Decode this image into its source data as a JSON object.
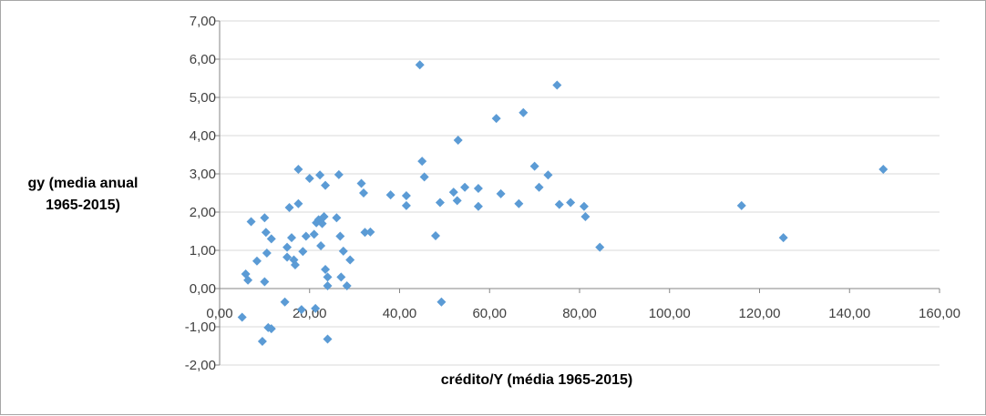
{
  "chart_data": {
    "type": "scatter",
    "xlabel": "crédito/Y (média 1965-2015)",
    "ylabel_lines": [
      "gy (media anual",
      "1965-2015)"
    ],
    "xlim": [
      0,
      160
    ],
    "ylim": [
      -2,
      7
    ],
    "x_ticks": [
      0,
      20,
      40,
      60,
      80,
      100,
      120,
      140,
      160
    ],
    "y_ticks": [
      -2,
      -1,
      0,
      1,
      2,
      3,
      4,
      5,
      6,
      7
    ],
    "x_tick_labels": [
      "0,00",
      "20,00",
      "40,00",
      "60,00",
      "80,00",
      "100,00",
      "120,00",
      "140,00",
      "160,00"
    ],
    "y_tick_labels": [
      "-2,00",
      "-1,00",
      "0,00",
      "1,00",
      "2,00",
      "3,00",
      "4,00",
      "5,00",
      "6,00",
      "7,00"
    ],
    "grid": "horizontal major",
    "legend": "none",
    "marker_color": "#5b9bd5",
    "marker": "diamond",
    "points": [
      [
        5.0,
        -0.75
      ],
      [
        5.8,
        0.38
      ],
      [
        6.3,
        0.22
      ],
      [
        7.0,
        1.75
      ],
      [
        8.3,
        0.72
      ],
      [
        9.5,
        -1.38
      ],
      [
        10.0,
        1.85
      ],
      [
        10.0,
        0.18
      ],
      [
        10.3,
        1.47
      ],
      [
        10.5,
        0.93
      ],
      [
        10.8,
        -1.02
      ],
      [
        11.5,
        -1.05
      ],
      [
        11.5,
        1.3
      ],
      [
        14.5,
        -0.35
      ],
      [
        15.0,
        0.82
      ],
      [
        15.0,
        1.08
      ],
      [
        15.5,
        2.12
      ],
      [
        16.0,
        1.33
      ],
      [
        16.5,
        0.75
      ],
      [
        16.8,
        0.62
      ],
      [
        17.5,
        2.22
      ],
      [
        17.5,
        3.12
      ],
      [
        18.2,
        -0.55
      ],
      [
        18.5,
        0.97
      ],
      [
        19.2,
        1.37
      ],
      [
        20.0,
        2.88
      ],
      [
        21.0,
        1.42
      ],
      [
        21.3,
        -0.52
      ],
      [
        21.5,
        1.72
      ],
      [
        22.0,
        1.8
      ],
      [
        22.3,
        2.97
      ],
      [
        22.5,
        1.12
      ],
      [
        22.8,
        1.7
      ],
      [
        23.2,
        1.88
      ],
      [
        23.5,
        0.5
      ],
      [
        23.5,
        2.7
      ],
      [
        24.0,
        0.3
      ],
      [
        24.0,
        0.07
      ],
      [
        24.0,
        -1.32
      ],
      [
        26.0,
        1.85
      ],
      [
        26.5,
        2.98
      ],
      [
        26.8,
        1.37
      ],
      [
        27.0,
        0.3
      ],
      [
        27.5,
        0.98
      ],
      [
        28.3,
        0.07
      ],
      [
        29.0,
        0.75
      ],
      [
        31.5,
        2.75
      ],
      [
        32.0,
        2.5
      ],
      [
        32.3,
        1.47
      ],
      [
        33.5,
        1.48
      ],
      [
        38.0,
        2.45
      ],
      [
        41.5,
        2.43
      ],
      [
        41.5,
        2.17
      ],
      [
        44.5,
        5.85
      ],
      [
        45.0,
        3.33
      ],
      [
        45.5,
        2.92
      ],
      [
        48.0,
        1.38
      ],
      [
        49.0,
        2.25
      ],
      [
        49.3,
        -0.35
      ],
      [
        52.0,
        2.52
      ],
      [
        52.8,
        2.3
      ],
      [
        53.0,
        3.88
      ],
      [
        54.5,
        2.65
      ],
      [
        57.5,
        2.62
      ],
      [
        57.5,
        2.15
      ],
      [
        61.5,
        4.45
      ],
      [
        62.5,
        2.48
      ],
      [
        66.5,
        2.22
      ],
      [
        67.5,
        4.6
      ],
      [
        70.0,
        3.2
      ],
      [
        71.0,
        2.65
      ],
      [
        73.0,
        2.97
      ],
      [
        75.0,
        5.32
      ],
      [
        75.5,
        2.2
      ],
      [
        78.0,
        2.25
      ],
      [
        81.0,
        2.15
      ],
      [
        81.3,
        1.88
      ],
      [
        84.5,
        1.08
      ],
      [
        116.0,
        2.17
      ],
      [
        125.3,
        1.33
      ],
      [
        147.5,
        3.12
      ]
    ]
  }
}
